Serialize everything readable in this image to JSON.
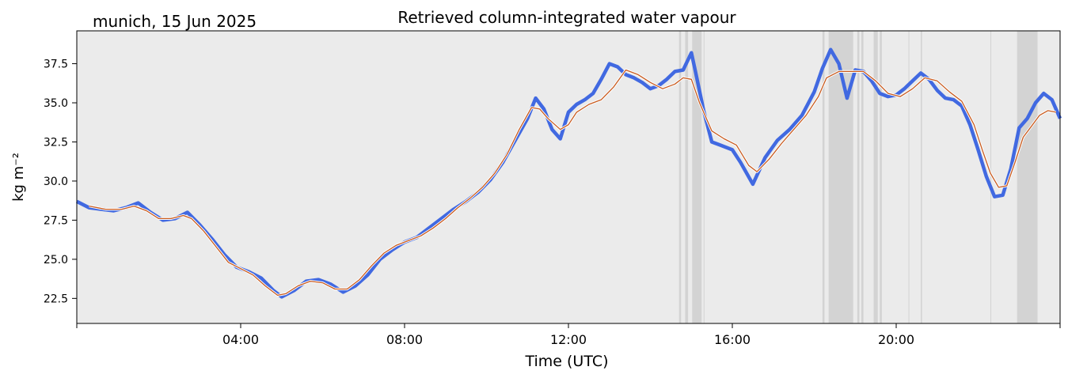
{
  "location_date": "munich, 15 Jun 2025",
  "chart_data": {
    "type": "line",
    "title": "Retrieved column-integrated water vapour",
    "xlabel": "Time (UTC)",
    "ylabel": "kg m⁻²",
    "x_unit": "hours UTC",
    "xlim": [
      0,
      24
    ],
    "ylim": [
      20.9,
      39.6
    ],
    "x_ticks": [
      4,
      8,
      12,
      16,
      20
    ],
    "x_tick_labels": [
      "04:00",
      "08:00",
      "12:00",
      "16:00",
      "20:00"
    ],
    "y_ticks": [
      22.5,
      25.0,
      27.5,
      30.0,
      32.5,
      35.0,
      37.5
    ],
    "y_tick_labels": [
      "22.5",
      "25.0",
      "27.5",
      "30.0",
      "32.5",
      "35.0",
      "37.5"
    ],
    "grid": false,
    "background_color": "#ebebeb",
    "shaded_intervals": [
      [
        14.7,
        14.75
      ],
      [
        14.85,
        14.92
      ],
      [
        15.02,
        15.25
      ],
      [
        15.3,
        15.32
      ],
      [
        18.2,
        18.25
      ],
      [
        18.35,
        18.95
      ],
      [
        19.05,
        19.1
      ],
      [
        19.15,
        19.2
      ],
      [
        19.45,
        19.55
      ],
      [
        19.6,
        19.65
      ],
      [
        20.3,
        20.32
      ],
      [
        20.6,
        20.63
      ],
      [
        22.3,
        22.32
      ],
      [
        22.95,
        23.45
      ]
    ],
    "shade_color": "#d3d3d3",
    "series": [
      {
        "color": "#4169e1",
        "x": [
          0.0,
          0.3,
          0.6,
          0.9,
          1.2,
          1.5,
          1.8,
          2.1,
          2.4,
          2.7,
          3.0,
          3.3,
          3.6,
          3.9,
          4.2,
          4.5,
          4.8,
          5.0,
          5.3,
          5.6,
          5.9,
          6.2,
          6.5,
          6.8,
          7.1,
          7.4,
          7.7,
          8.0,
          8.3,
          8.6,
          8.9,
          9.2,
          9.5,
          9.8,
          10.1,
          10.4,
          10.7,
          11.0,
          11.2,
          11.4,
          11.6,
          11.8,
          12.0,
          12.2,
          12.4,
          12.6,
          12.8,
          13.0,
          13.2,
          13.4,
          13.6,
          13.8,
          14.0,
          14.2,
          14.4,
          14.6,
          14.8,
          15.0,
          15.1,
          15.3,
          15.5,
          15.7,
          16.0,
          16.2,
          16.5,
          16.8,
          17.1,
          17.4,
          17.7,
          18.0,
          18.2,
          18.4,
          18.6,
          18.8,
          19.0,
          19.2,
          19.4,
          19.6,
          19.8,
          20.0,
          20.2,
          20.4,
          20.6,
          20.8,
          21.0,
          21.2,
          21.4,
          21.6,
          21.8,
          22.0,
          22.2,
          22.4,
          22.6,
          22.8,
          23.0,
          23.2,
          23.4,
          23.6,
          23.8,
          24.0
        ],
        "y": [
          28.7,
          28.3,
          28.2,
          28.1,
          28.3,
          28.6,
          28.0,
          27.5,
          27.6,
          28.0,
          27.2,
          26.3,
          25.3,
          24.5,
          24.2,
          23.8,
          23.0,
          22.6,
          23.0,
          23.6,
          23.7,
          23.4,
          22.9,
          23.3,
          24.0,
          25.0,
          25.6,
          26.1,
          26.4,
          27.0,
          27.6,
          28.2,
          28.7,
          29.3,
          30.1,
          31.2,
          32.6,
          34.0,
          35.3,
          34.6,
          33.3,
          32.7,
          34.4,
          34.9,
          35.2,
          35.6,
          36.5,
          37.5,
          37.3,
          36.8,
          36.6,
          36.3,
          35.9,
          36.1,
          36.5,
          37.0,
          37.1,
          38.2,
          37.0,
          34.5,
          32.5,
          32.3,
          32.0,
          31.2,
          29.8,
          31.5,
          32.6,
          33.3,
          34.2,
          35.7,
          37.2,
          38.4,
          37.5,
          35.3,
          37.1,
          37.0,
          36.4,
          35.6,
          35.4,
          35.5,
          35.9,
          36.4,
          36.9,
          36.5,
          35.8,
          35.3,
          35.2,
          34.8,
          33.6,
          32.0,
          30.3,
          29.0,
          29.1,
          30.8,
          33.4,
          34.0,
          35.0,
          35.6,
          35.2,
          34.0
        ]
      },
      {
        "color": "#c85a1e",
        "x": [
          0.3,
          0.7,
          1.1,
          1.4,
          1.7,
          2.0,
          2.3,
          2.6,
          2.8,
          3.1,
          3.4,
          3.7,
          4.0,
          4.3,
          4.6,
          4.9,
          5.1,
          5.4,
          5.7,
          6.0,
          6.3,
          6.6,
          6.9,
          7.2,
          7.5,
          7.8,
          8.1,
          8.4,
          8.7,
          9.0,
          9.3,
          9.6,
          9.9,
          10.2,
          10.5,
          10.8,
          11.1,
          11.3,
          11.5,
          11.8,
          12.0,
          12.2,
          12.5,
          12.8,
          13.1,
          13.4,
          13.7,
          14.0,
          14.3,
          14.6,
          14.8,
          15.0,
          15.2,
          15.5,
          15.8,
          16.1,
          16.4,
          16.6,
          16.9,
          17.2,
          17.5,
          17.8,
          18.1,
          18.3,
          18.6,
          18.9,
          19.2,
          19.5,
          19.8,
          20.1,
          20.4,
          20.7,
          21.0,
          21.3,
          21.6,
          21.9,
          22.1,
          22.3,
          22.5,
          22.7,
          22.9,
          23.1,
          23.3,
          23.5,
          23.7,
          23.9
        ],
        "y": [
          28.4,
          28.2,
          28.2,
          28.4,
          28.1,
          27.6,
          27.6,
          27.8,
          27.6,
          26.8,
          25.8,
          24.8,
          24.4,
          24.0,
          23.3,
          22.7,
          22.8,
          23.3,
          23.6,
          23.5,
          23.1,
          23.1,
          23.7,
          24.6,
          25.4,
          25.9,
          26.2,
          26.5,
          27.0,
          27.6,
          28.3,
          28.9,
          29.6,
          30.5,
          31.7,
          33.3,
          34.7,
          34.6,
          34.0,
          33.3,
          33.6,
          34.4,
          34.9,
          35.2,
          36.0,
          37.1,
          36.8,
          36.3,
          35.9,
          36.2,
          36.6,
          36.5,
          35.0,
          33.2,
          32.7,
          32.3,
          31.0,
          30.6,
          31.4,
          32.4,
          33.3,
          34.2,
          35.4,
          36.6,
          37.0,
          37.0,
          37.0,
          36.4,
          35.6,
          35.4,
          35.9,
          36.6,
          36.4,
          35.7,
          35.1,
          33.6,
          32.0,
          30.5,
          29.6,
          29.7,
          31.2,
          32.8,
          33.5,
          34.2,
          34.5,
          34.4
        ]
      }
    ]
  }
}
